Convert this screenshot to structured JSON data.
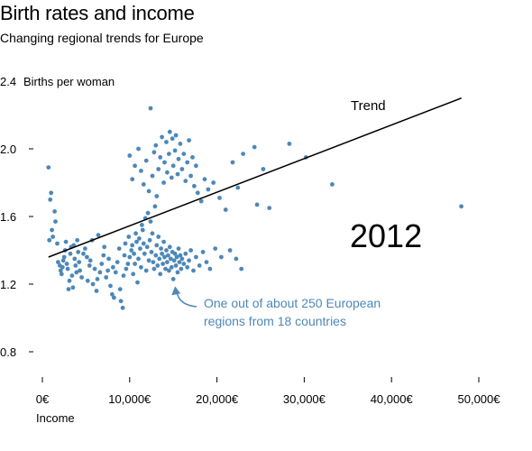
{
  "header": {
    "title": "Birth rates and income",
    "subtitle": "Changing regional trends for Europe"
  },
  "chart_data": {
    "type": "scatter",
    "title": "Birth rates and income",
    "subtitle": "Changing regional trends for Europe",
    "ylabel": "Births per woman",
    "xlabel": "Income",
    "xlim": [
      0,
      50000
    ],
    "ylim": [
      0.8,
      2.4
    ],
    "x_ticks": [
      "0€",
      "10,000€",
      "20,000€",
      "30,000€",
      "40,000€",
      "50,000€"
    ],
    "y_ticks": [
      "0.8",
      "1.2",
      "1.6",
      "2.0",
      "2.4"
    ],
    "y_tick_values": [
      0.8,
      1.2,
      1.6,
      2.0,
      2.4
    ],
    "x_tick_values": [
      0,
      10000,
      20000,
      30000,
      40000,
      50000
    ],
    "grid": false,
    "point_color": "#4d88b8",
    "trend": {
      "label": "Trend",
      "x": [
        700,
        48000
      ],
      "y": [
        1.36,
        2.3
      ]
    },
    "year": "2012",
    "annotation": {
      "lines": [
        "One out of about 250 European",
        "regions from 18 countries"
      ],
      "points_to": [
        15000,
        1.23
      ],
      "color": "#4d88b8"
    },
    "points": [
      [
        700,
        1.89
      ],
      [
        800,
        1.46
      ],
      [
        900,
        1.7
      ],
      [
        1000,
        1.74
      ],
      [
        1100,
        1.52
      ],
      [
        1200,
        1.48
      ],
      [
        1400,
        1.63
      ],
      [
        1500,
        1.57
      ],
      [
        1700,
        1.44
      ],
      [
        1800,
        1.33
      ],
      [
        2000,
        1.31
      ],
      [
        2100,
        1.28
      ],
      [
        2200,
        1.26
      ],
      [
        2300,
        1.3
      ],
      [
        2400,
        1.34
      ],
      [
        2500,
        1.36
      ],
      [
        2600,
        1.4
      ],
      [
        2700,
        1.45
      ],
      [
        2800,
        1.32
      ],
      [
        2900,
        1.29
      ],
      [
        3000,
        1.17
      ],
      [
        3100,
        1.22
      ],
      [
        3200,
        1.38
      ],
      [
        3300,
        1.42
      ],
      [
        3400,
        1.25
      ],
      [
        3500,
        1.18
      ],
      [
        3600,
        1.43
      ],
      [
        3700,
        1.35
      ],
      [
        3800,
        1.31
      ],
      [
        3900,
        1.27
      ],
      [
        4000,
        1.46
      ],
      [
        4100,
        1.39
      ],
      [
        4200,
        1.33
      ],
      [
        4300,
        1.28
      ],
      [
        4500,
        1.24
      ],
      [
        4700,
        1.38
      ],
      [
        4900,
        1.41
      ],
      [
        5100,
        1.36
      ],
      [
        5200,
        1.22
      ],
      [
        5400,
        1.31
      ],
      [
        5500,
        1.34
      ],
      [
        5700,
        1.46
      ],
      [
        5800,
        1.2
      ],
      [
        6000,
        1.29
      ],
      [
        6200,
        1.16
      ],
      [
        6300,
        1.23
      ],
      [
        6400,
        1.49
      ],
      [
        6600,
        1.27
      ],
      [
        6800,
        1.32
      ],
      [
        7000,
        1.37
      ],
      [
        7100,
        1.42
      ],
      [
        7300,
        1.24
      ],
      [
        7500,
        1.28
      ],
      [
        7600,
        1.35
      ],
      [
        7800,
        1.19
      ],
      [
        8000,
        1.14
      ],
      [
        8100,
        1.3
      ],
      [
        8200,
        1.12
      ],
      [
        8400,
        1.27
      ],
      [
        8600,
        1.33
      ],
      [
        8800,
        1.41
      ],
      [
        8900,
        1.17
      ],
      [
        9000,
        1.1
      ],
      [
        9200,
        1.06
      ],
      [
        9300,
        1.25
      ],
      [
        9400,
        1.37
      ],
      [
        9500,
        1.44
      ],
      [
        9600,
        1.29
      ],
      [
        9800,
        1.32
      ],
      [
        9900,
        1.48
      ],
      [
        10000,
        1.36
      ],
      [
        10200,
        1.4
      ],
      [
        10300,
        1.43
      ],
      [
        10400,
        1.26
      ],
      [
        10500,
        1.38
      ],
      [
        10600,
        1.32
      ],
      [
        10700,
        1.5
      ],
      [
        10800,
        1.45
      ],
      [
        10900,
        1.21
      ],
      [
        11000,
        1.35
      ],
      [
        11100,
        1.47
      ],
      [
        11200,
        1.41
      ],
      [
        11300,
        1.3
      ],
      [
        11400,
        1.55
      ],
      [
        11500,
        1.52
      ],
      [
        11600,
        1.44
      ],
      [
        11700,
        1.38
      ],
      [
        11800,
        1.59
      ],
      [
        11900,
        1.28
      ],
      [
        12000,
        1.42
      ],
      [
        12100,
        1.62
      ],
      [
        12200,
        1.34
      ],
      [
        12300,
        1.46
      ],
      [
        12400,
        1.57
      ],
      [
        12500,
        1.39
      ],
      [
        12600,
        1.5
      ],
      [
        12700,
        1.33
      ],
      [
        12800,
        1.29
      ],
      [
        12900,
        1.66
      ],
      [
        13000,
        1.37
      ],
      [
        13100,
        1.43
      ],
      [
        13200,
        1.31
      ],
      [
        13300,
        1.48
      ],
      [
        13400,
        1.35
      ],
      [
        13500,
        1.26
      ],
      [
        13600,
        1.41
      ],
      [
        13700,
        1.38
      ],
      [
        13800,
        1.32
      ],
      [
        13900,
        1.45
      ],
      [
        14000,
        1.36
      ],
      [
        14100,
        1.29
      ],
      [
        14200,
        1.4
      ],
      [
        14300,
        1.33
      ],
      [
        14400,
        1.37
      ],
      [
        14500,
        1.28
      ],
      [
        14600,
        1.42
      ],
      [
        14700,
        1.35
      ],
      [
        14800,
        1.3
      ],
      [
        14900,
        1.39
      ],
      [
        15000,
        1.23
      ],
      [
        15100,
        1.34
      ],
      [
        15200,
        1.38
      ],
      [
        15300,
        1.31
      ],
      [
        15400,
        1.36
      ],
      [
        15500,
        1.27
      ],
      [
        15600,
        1.41
      ],
      [
        15700,
        1.33
      ],
      [
        15800,
        1.37
      ],
      [
        15900,
        1.29
      ],
      [
        16000,
        1.35
      ],
      [
        16200,
        1.32
      ],
      [
        16400,
        1.38
      ],
      [
        16600,
        1.3
      ],
      [
        16800,
        1.34
      ],
      [
        17000,
        1.4
      ],
      [
        17300,
        1.28
      ],
      [
        17600,
        1.36
      ],
      [
        18000,
        1.31
      ],
      [
        18400,
        1.39
      ],
      [
        18800,
        1.33
      ],
      [
        19200,
        1.29
      ],
      [
        19800,
        1.41
      ],
      [
        20500,
        1.36
      ],
      [
        21500,
        1.4
      ],
      [
        22200,
        1.35
      ],
      [
        22800,
        1.29
      ],
      [
        10000,
        1.96
      ],
      [
        10300,
        1.82
      ],
      [
        10600,
        1.9
      ],
      [
        11000,
        2.0
      ],
      [
        11300,
        1.87
      ],
      [
        11600,
        1.79
      ],
      [
        11900,
        1.93
      ],
      [
        12200,
        1.75
      ],
      [
        12400,
        2.24
      ],
      [
        12600,
        1.84
      ],
      [
        12800,
        1.98
      ],
      [
        13000,
        2.02
      ],
      [
        13100,
        1.72
      ],
      [
        13300,
        1.88
      ],
      [
        13500,
        1.95
      ],
      [
        13700,
        2.07
      ],
      [
        13900,
        1.8
      ],
      [
        14000,
        1.92
      ],
      [
        14200,
        2.04
      ],
      [
        14300,
        1.86
      ],
      [
        14500,
        1.97
      ],
      [
        14600,
        2.1
      ],
      [
        14800,
        1.83
      ],
      [
        14900,
        2.06
      ],
      [
        15000,
        1.9
      ],
      [
        15200,
        1.99
      ],
      [
        15300,
        2.08
      ],
      [
        15500,
        1.85
      ],
      [
        15600,
        1.94
      ],
      [
        15800,
        2.03
      ],
      [
        16000,
        1.88
      ],
      [
        16200,
        1.97
      ],
      [
        16400,
        1.81
      ],
      [
        16600,
        1.92
      ],
      [
        16800,
        2.05
      ],
      [
        17000,
        1.84
      ],
      [
        17200,
        1.95
      ],
      [
        17400,
        1.78
      ],
      [
        17600,
        1.9
      ],
      [
        17800,
        1.74
      ],
      [
        18200,
        1.69
      ],
      [
        18600,
        1.82
      ],
      [
        19000,
        1.76
      ],
      [
        19600,
        1.8
      ],
      [
        20300,
        1.71
      ],
      [
        21000,
        1.64
      ],
      [
        21800,
        1.92
      ],
      [
        22400,
        1.77
      ],
      [
        23000,
        1.97
      ],
      [
        24300,
        2.01
      ],
      [
        24600,
        1.67
      ],
      [
        25300,
        1.88
      ],
      [
        26000,
        1.65
      ],
      [
        28300,
        2.03
      ],
      [
        30200,
        1.95
      ],
      [
        33200,
        1.79
      ],
      [
        48000,
        1.66
      ]
    ]
  }
}
